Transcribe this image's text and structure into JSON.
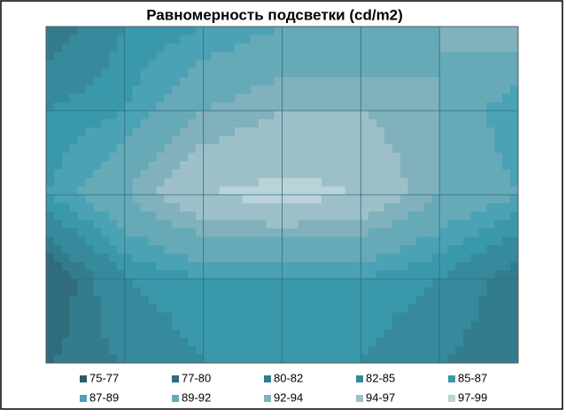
{
  "chart_data": {
    "type": "contour",
    "title": "Равномерность подсветки (cd/m2)",
    "z": [
      [
        80,
        85,
        87,
        89,
        89,
        92,
        94
      ],
      [
        85,
        87,
        92,
        94,
        94,
        92,
        87
      ],
      [
        87,
        92,
        97,
        98,
        97,
        92,
        89
      ],
      [
        77,
        85,
        87,
        87,
        87,
        85,
        80
      ],
      [
        80,
        82,
        85,
        85,
        85,
        82,
        80
      ]
    ],
    "levels": [
      75,
      77,
      80,
      82,
      85,
      87,
      89,
      92,
      94,
      97,
      99
    ],
    "series": [
      {
        "name": "75-77",
        "color": "#2b5f6d"
      },
      {
        "name": "77-80",
        "color": "#2f6d7d"
      },
      {
        "name": "80-82",
        "color": "#337c8d"
      },
      {
        "name": "82-85",
        "color": "#368a9c"
      },
      {
        "name": "85-87",
        "color": "#3a98ab"
      },
      {
        "name": "87-89",
        "color": "#4aa2b4"
      },
      {
        "name": "89-92",
        "color": "#66a9b7"
      },
      {
        "name": "92-94",
        "color": "#80b1bd"
      },
      {
        "name": "94-97",
        "color": "#9dc0c8"
      },
      {
        "name": "97-99",
        "color": "#b9d3d9"
      }
    ]
  }
}
